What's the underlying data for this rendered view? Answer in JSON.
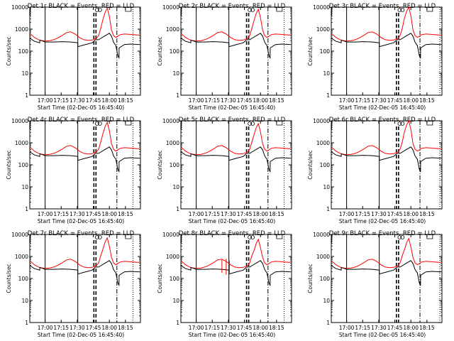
{
  "chart_data": {
    "type": "line",
    "xlabel": "Start Time (02-Dec-05 16:45:40)",
    "ylabel": "Counts/sec",
    "x_ticks": [
      "17:00",
      "17:15",
      "17:30",
      "17:45",
      "18:00",
      "18:15"
    ],
    "x_tick_minutes": [
      0,
      15,
      30,
      45,
      60,
      75
    ],
    "xlim_minutes_after_1700": [
      -14.3,
      89
    ],
    "yscale": "log",
    "ylim": [
      1,
      10000
    ],
    "y_ticks": [
      "1",
      "10",
      "100",
      "1000",
      "10000"
    ],
    "y_tick_values": [
      1,
      10,
      100,
      1000,
      10000
    ],
    "grid": false,
    "panels": [
      {
        "title": "Det 1r BLACK = Events, RED = LLD",
        "layout": "a",
        "peak": 9000
      },
      {
        "title": "Det 2r BLACK = Events, RED = LLD",
        "layout": "b",
        "peak": 8000
      },
      {
        "title": "Det 3r BLACK = Events, RED = LLD",
        "layout": "c",
        "peak": 10000
      },
      {
        "title": "Det 4r BLACK = Events, RED = LLD",
        "layout": "a",
        "peak": 8500
      },
      {
        "title": "Det 5r BLACK = Events, RED = LLD",
        "layout": "b",
        "peak": 7500
      },
      {
        "title": "Det 6r BLACK = Events, RED = LLD",
        "layout": "c",
        "peak": 10000
      },
      {
        "title": "Det 7r BLACK = Events, RED = LLD",
        "layout": "a",
        "peak": 7000
      },
      {
        "title": "Det 8r BLACK = Events, RED = LLD",
        "layout": "b",
        "peak": 6000,
        "spikes": true
      },
      {
        "title": "Det 9r BLACK = Events, RED = LLD",
        "layout": "c",
        "peak": 6500
      }
    ],
    "series": [
      {
        "color": "#ff0000",
        "x": [
          -14,
          -10,
          -5,
          0,
          4,
          8,
          12,
          16,
          20,
          24,
          28,
          32,
          36,
          40,
          44,
          48,
          50,
          52,
          54,
          56,
          58,
          60,
          62,
          64,
          66,
          68,
          70,
          74,
          78,
          82,
          86,
          88
        ],
        "y": [
          620,
          420,
          310,
          290,
          295,
          330,
          400,
          520,
          700,
          750,
          600,
          420,
          330,
          310,
          320,
          380,
          520,
          1100,
          2600,
          5500,
          8500,
          3500,
          900,
          500,
          420,
          480,
          560,
          600,
          580,
          560,
          540,
          540
        ]
      },
      {
        "color": "#000000",
        "x": [
          -14,
          -10,
          -5,
          -4.9,
          0,
          8,
          16,
          24,
          30.5,
          30.6,
          36,
          44,
          47,
          50,
          52,
          56,
          60,
          62,
          64,
          66,
          68,
          69,
          69.1,
          74,
          80,
          88
        ],
        "y": [
          380,
          280,
          240,
          320,
          260,
          260,
          270,
          260,
          240,
          160,
          190,
          240,
          330,
          330,
          380,
          500,
          650,
          480,
          250,
          180,
          60,
          50,
          140,
          200,
          210,
          200
        ]
      }
    ],
    "solid_vlines_minutes": [
      0,
      30.5
    ],
    "dashed_vlines_minutes": [
      45.5,
      47.5
    ],
    "dashdot_vline_minutes": [
      67
    ],
    "dotted_vline_minutes": [
      82
    ]
  }
}
